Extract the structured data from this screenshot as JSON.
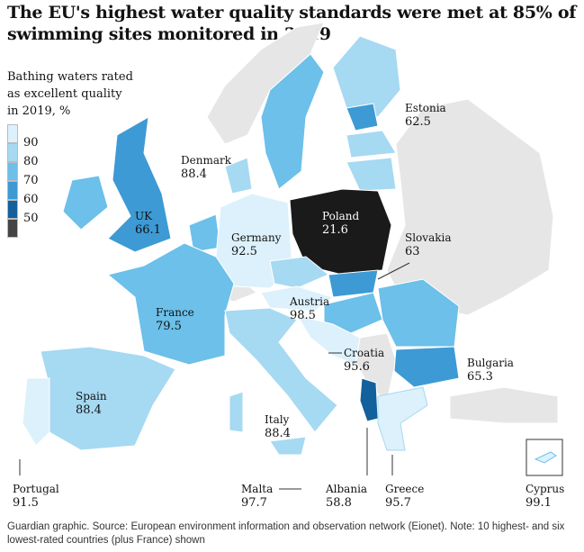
{
  "title": "The EU's highest water quality standards were met at 85% of swimming sites monitored in 2019",
  "legend": {
    "title_lines": [
      "Bathing waters rated",
      "as excellent quality",
      "in 2019, %"
    ],
    "ticks": [
      "90",
      "80",
      "70",
      "60",
      "50"
    ],
    "colors": [
      "#dcf1fb",
      "#a6d9f2",
      "#6cc0ea",
      "#3d9ad4",
      "#12609c",
      "#444444"
    ]
  },
  "colors": {
    "non_eu": "#e6e6e6",
    "border": "#ffffff"
  },
  "countries": [
    {
      "name": "Estonia",
      "value": "62.5"
    },
    {
      "name": "Denmark",
      "value": "88.4"
    },
    {
      "name": "UK",
      "value": "66.1"
    },
    {
      "name": "Poland",
      "value": "21.6"
    },
    {
      "name": "Germany",
      "value": "92.5"
    },
    {
      "name": "Slovakia",
      "value": "63"
    },
    {
      "name": "France",
      "value": "79.5"
    },
    {
      "name": "Austria",
      "value": "98.5"
    },
    {
      "name": "Croatia",
      "value": "95.6"
    },
    {
      "name": "Bulgaria",
      "value": "65.3"
    },
    {
      "name": "Spain",
      "value": "88.4"
    },
    {
      "name": "Italy",
      "value": "88.4"
    },
    {
      "name": "Portugal",
      "value": "91.5"
    },
    {
      "name": "Malta",
      "value": "97.7"
    },
    {
      "name": "Albania",
      "value": "58.8"
    },
    {
      "name": "Greece",
      "value": "95.7"
    },
    {
      "name": "Cyprus",
      "value": "99.1"
    }
  ],
  "footer": "Guardian graphic. Source: European environment information and observation network (Eionet). Note: 10 highest- and six lowest-rated countries (plus France) shown"
}
